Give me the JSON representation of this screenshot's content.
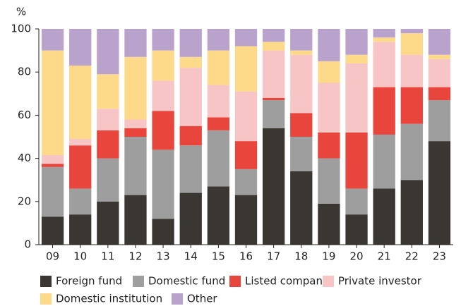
{
  "chart_data": {
    "type": "stacked_bar",
    "y_label": "%",
    "categories": [
      "09",
      "10",
      "11",
      "12",
      "13",
      "14",
      "15",
      "16",
      "17",
      "18",
      "19",
      "20",
      "21",
      "22",
      "23"
    ],
    "series": [
      {
        "name": "Foreign fund",
        "color": "#3a3733",
        "values": [
          13,
          14,
          20,
          23,
          12,
          24,
          27,
          23,
          54,
          34,
          19,
          14,
          26,
          30,
          48
        ]
      },
      {
        "name": "Domestic fund",
        "color": "#9e9e9e",
        "values": [
          23,
          12,
          20,
          27,
          32,
          22,
          26,
          12,
          13,
          16,
          21,
          12,
          25,
          26,
          19
        ]
      },
      {
        "name": "Listed company",
        "color": "#e8453c",
        "values": [
          1.5,
          20,
          13,
          4,
          18,
          9,
          6,
          13,
          1,
          11,
          12,
          26,
          22,
          17,
          6
        ]
      },
      {
        "name": "Private investor",
        "color": "#f7c5c5",
        "values": [
          4,
          3,
          10,
          4,
          14,
          27,
          15,
          23,
          22,
          27,
          23,
          32,
          21,
          15,
          13
        ]
      },
      {
        "name": "Domestic institution",
        "color": "#fdd98a",
        "values": [
          48.5,
          34,
          16,
          29,
          14,
          5,
          16,
          21,
          4,
          2,
          10,
          4,
          2,
          10,
          2
        ]
      },
      {
        "name": "Other",
        "color": "#b9a3cc",
        "values": [
          10,
          17,
          21,
          13,
          10,
          13,
          10,
          8,
          6,
          10,
          15,
          12,
          4,
          2,
          12
        ]
      }
    ],
    "ylim": [
      0,
      100
    ],
    "yticks": [
      0,
      20,
      40,
      60,
      80,
      100
    ],
    "legend": "bottom"
  }
}
